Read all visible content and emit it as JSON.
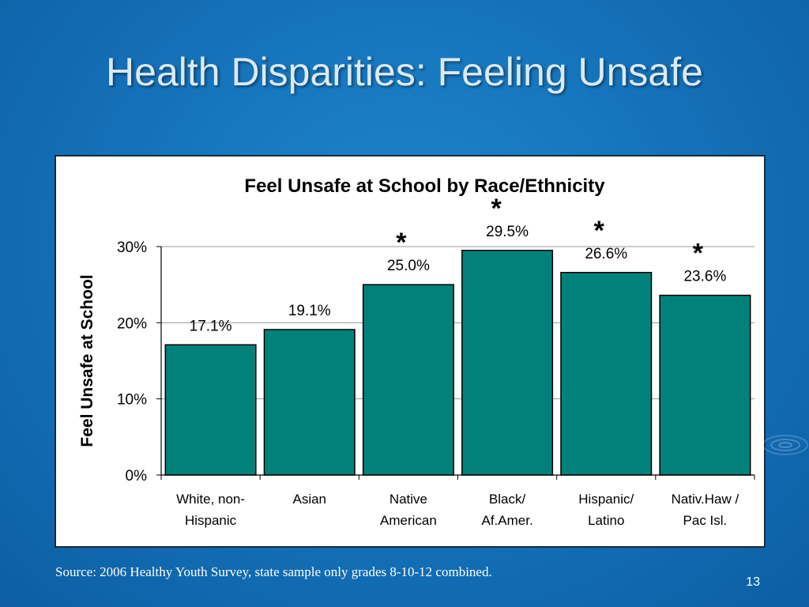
{
  "slide": {
    "title": "Health Disparities: Feeling Unsafe",
    "source": "Source: 2006 Healthy Youth Survey, state sample only grades 8-10-12 combined.",
    "page_number": "13"
  },
  "colors": {
    "background": "#1470b8",
    "bar": "#00827a",
    "bar_outline": "#000000"
  },
  "chart_data": {
    "type": "bar",
    "title": "Feel Unsafe at School by Race/Ethnicity",
    "ylabel": "Feel Unsafe at School",
    "xlabel": "",
    "ylim": [
      0,
      30
    ],
    "yticks": [
      0,
      10,
      20,
      30
    ],
    "ytick_labels": [
      "0%",
      "10%",
      "20%",
      "30%"
    ],
    "grid": true,
    "categories": [
      [
        "White, non-",
        "Hispanic"
      ],
      [
        "Asian"
      ],
      [
        "Native",
        "American"
      ],
      [
        "Black/",
        "Af.Amer."
      ],
      [
        "Hispanic/",
        "Latino"
      ],
      [
        "Nativ.Haw /",
        "Pac Isl."
      ]
    ],
    "values": [
      17.1,
      19.1,
      25.0,
      29.5,
      26.6,
      23.6
    ],
    "data_labels": [
      "17.1%",
      "19.1%",
      "25.0%",
      "29.5%",
      "26.6%",
      "23.6%"
    ],
    "significant": [
      false,
      false,
      true,
      true,
      true,
      true
    ],
    "significance_marker": "*"
  }
}
